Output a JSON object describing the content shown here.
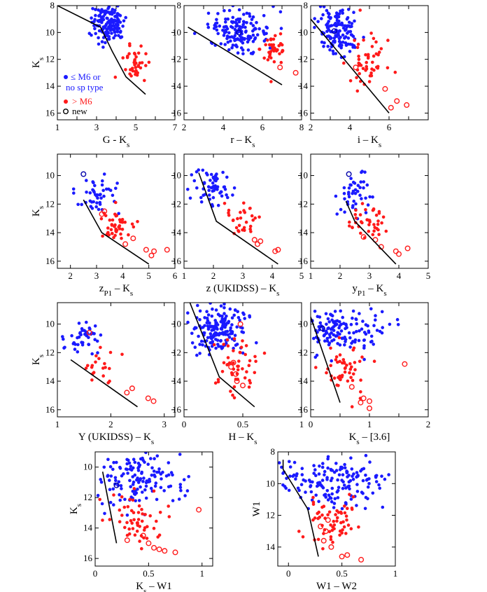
{
  "colors": {
    "blue": "#1a1aff",
    "red": "#ff1a1a",
    "navy": "#0000aa",
    "axis": "#000000"
  },
  "legend": {
    "blue_label_1": "≤ M6 or",
    "blue_label_2": "no sp type",
    "red_label": "> M6",
    "new_label": "new"
  },
  "chart_data": [
    {
      "id": "p1",
      "type": "scatter",
      "xlabel": "G - K",
      "xsub": "s",
      "ylabel": "K",
      "ysub": "s",
      "xlim": [
        1,
        7
      ],
      "ylim": [
        16.5,
        8
      ],
      "xticks": [
        1,
        2,
        3,
        4,
        5,
        6,
        7
      ],
      "xtick_labels": [
        "1",
        "",
        "3",
        "",
        "5",
        "",
        "7"
      ],
      "yticks": [
        8,
        10,
        12,
        14,
        16
      ],
      "boundary": [
        [
          1,
          8
        ],
        [
          3.2,
          9.6
        ],
        [
          3.8,
          11.4
        ],
        [
          4.5,
          13.3
        ],
        [
          5.5,
          14.6
        ]
      ],
      "blue_center": [
        3.6,
        9.3
      ],
      "blue_spread": [
        0.7,
        1.2
      ],
      "n_blue": 150,
      "red_center": [
        5.0,
        12.5
      ],
      "red_spread": [
        0.5,
        1.2
      ],
      "n_red": 40,
      "new": []
    },
    {
      "id": "p2",
      "type": "scatter",
      "xlabel": "r – K",
      "xsub": "s",
      "ylabel": "K",
      "ysub": "s",
      "xlim": [
        2,
        8
      ],
      "ylim": [
        16.5,
        8
      ],
      "xticks": [
        2,
        3,
        4,
        5,
        6,
        7,
        8
      ],
      "xtick_labels": [
        "2",
        "",
        "4",
        "",
        "6",
        "",
        "8"
      ],
      "yticks": [
        8,
        10,
        12,
        14,
        16
      ],
      "boundary": [
        [
          2.2,
          9.6
        ],
        [
          7,
          13.9
        ]
      ],
      "blue_center": [
        4.8,
        9.9
      ],
      "blue_spread": [
        1.3,
        1.2
      ],
      "n_blue": 150,
      "red_center": [
        6.6,
        11.3
      ],
      "red_spread": [
        0.6,
        1.2
      ],
      "n_red": 40,
      "new": [
        [
          4.8,
          10.0
        ],
        [
          6.9,
          12.6
        ],
        [
          7.7,
          13.0
        ]
      ]
    },
    {
      "id": "p3",
      "type": "scatter",
      "xlabel": "i – K",
      "xsub": "s",
      "ylabel": "K",
      "ysub": "s",
      "xlim": [
        2,
        8
      ],
      "ylim": [
        16.5,
        8
      ],
      "xticks": [
        2,
        3,
        4,
        5,
        6,
        7,
        8
      ],
      "xtick_labels": [
        "2",
        "",
        "4",
        "",
        "6",
        "",
        ""
      ],
      "yticks": [
        8,
        10,
        12,
        14,
        16
      ],
      "boundary": [
        [
          2,
          9
        ],
        [
          6,
          16
        ]
      ],
      "blue_center": [
        3.4,
        9.8
      ],
      "blue_spread": [
        0.9,
        1.4
      ],
      "n_blue": 140,
      "red_center": [
        4.8,
        12.2
      ],
      "red_spread": [
        0.8,
        1.6
      ],
      "n_red": 50,
      "new": [
        [
          3.2,
          9.9
        ],
        [
          4.3,
          12.6
        ],
        [
          5.8,
          14.2
        ],
        [
          6.4,
          15.1
        ],
        [
          6.9,
          15.4
        ],
        [
          6.1,
          15.6
        ]
      ]
    },
    {
      "id": "p4",
      "type": "scatter",
      "xlabel": "z",
      "xsub": "P1",
      "xlabel_tail": " – K",
      "xsub2": "s",
      "ylabel": "K",
      "ysub": "s",
      "xlim": [
        1.5,
        6
      ],
      "ylim": [
        16.5,
        8.5
      ],
      "xticks": [
        2,
        3,
        4,
        5,
        6
      ],
      "xtick_labels": [
        "2",
        "3",
        "4",
        "5",
        "6"
      ],
      "yticks": [
        10,
        12,
        14,
        16
      ],
      "boundary": [
        [
          2.5,
          11.7
        ],
        [
          3.2,
          14
        ],
        [
          5,
          16.2
        ]
      ],
      "blue_center": [
        3.0,
        11.2
      ],
      "blue_spread": [
        0.7,
        1.2
      ],
      "n_blue": 45,
      "red_center": [
        3.8,
        13.6
      ],
      "red_spread": [
        0.6,
        1.0
      ],
      "n_red": 45,
      "new": [
        [
          2.5,
          9.9
        ],
        [
          3.2,
          12.7
        ],
        [
          4.4,
          14.4
        ],
        [
          4.1,
          14.8
        ],
        [
          4.9,
          15.2
        ],
        [
          5.1,
          15.6
        ],
        [
          5.2,
          15.3
        ],
        [
          5.7,
          15.2
        ],
        [
          3.3,
          12.5
        ]
      ]
    },
    {
      "id": "p5",
      "type": "scatter",
      "xlabel": "z (UKIDSS) – K",
      "xsub": "s",
      "ylabel": "K",
      "ysub": "s",
      "xlim": [
        1,
        5
      ],
      "ylim": [
        16.5,
        8.5
      ],
      "xticks": [
        1,
        2,
        3,
        4,
        5
      ],
      "xtick_labels": [
        "1",
        "2",
        "3",
        "4",
        "5"
      ],
      "yticks": [
        10,
        12,
        14,
        16
      ],
      "boundary": [
        [
          1.5,
          9.8
        ],
        [
          2.1,
          13.2
        ],
        [
          4.2,
          16.2
        ]
      ],
      "blue_center": [
        2.0,
        10.8
      ],
      "blue_spread": [
        0.5,
        1.2
      ],
      "n_blue": 60,
      "red_center": [
        2.9,
        13.2
      ],
      "red_spread": [
        0.6,
        1.1
      ],
      "n_red": 30,
      "new": [
        [
          3.4,
          14.5
        ],
        [
          3.6,
          14.6
        ],
        [
          3.5,
          14.8
        ],
        [
          4.2,
          15.2
        ],
        [
          4.1,
          15.3
        ]
      ]
    },
    {
      "id": "p6",
      "type": "scatter",
      "xlabel": "y",
      "xsub": "P1",
      "xlabel_tail": " – K",
      "xsub2": "s",
      "ylabel": "K",
      "ysub": "s",
      "xlim": [
        1,
        5
      ],
      "ylim": [
        16.5,
        8.5
      ],
      "xticks": [
        1,
        2,
        3,
        4,
        5
      ],
      "xtick_labels": [
        "1",
        "2",
        "3",
        "4",
        "5"
      ],
      "yticks": [
        10,
        12,
        14,
        16
      ],
      "boundary": [
        [
          2.2,
          11.8
        ],
        [
          2.5,
          13.2
        ],
        [
          3.9,
          16.2
        ]
      ],
      "blue_center": [
        2.4,
        11.2
      ],
      "blue_spread": [
        0.5,
        1.3
      ],
      "n_blue": 45,
      "red_center": [
        2.9,
        13.3
      ],
      "red_spread": [
        0.5,
        1.0
      ],
      "n_red": 40,
      "new": [
        [
          2.3,
          9.9
        ],
        [
          3.2,
          14.5
        ],
        [
          3.4,
          15.0
        ],
        [
          3.9,
          15.3
        ],
        [
          4.3,
          15.1
        ],
        [
          4.0,
          15.5
        ],
        [
          2.8,
          14.3
        ]
      ]
    },
    {
      "id": "p7",
      "type": "scatter",
      "xlabel": "Y (UKIDSS) – K",
      "xsub": "s",
      "ylabel": "K",
      "ysub": "s",
      "xlim": [
        1,
        3.2
      ],
      "ylim": [
        16.5,
        8.5
      ],
      "xticks": [
        1,
        2,
        3
      ],
      "xtick_labels": [
        "1",
        "2",
        "3"
      ],
      "yticks": [
        10,
        12,
        14,
        16
      ],
      "boundary": [
        [
          1.25,
          12.5
        ],
        [
          2.5,
          15.8
        ]
      ],
      "blue_center": [
        1.5,
        10.8
      ],
      "blue_spread": [
        0.3,
        1.0
      ],
      "n_blue": 45,
      "red_center": [
        1.8,
        12.8
      ],
      "red_spread": [
        0.3,
        1.2
      ],
      "n_red": 20,
      "new": [
        [
          2.3,
          14.8
        ],
        [
          2.4,
          14.5
        ],
        [
          2.7,
          15.2
        ],
        [
          2.8,
          15.4
        ],
        [
          1.6,
          10.6
        ]
      ]
    },
    {
      "id": "p8",
      "type": "scatter",
      "xlabel": "H – K",
      "xsub": "s",
      "ylabel": "K",
      "ysub": "s",
      "xlim": [
        0,
        1
      ],
      "ylim": [
        16.5,
        8.5
      ],
      "xticks": [
        0,
        0.5,
        1
      ],
      "xtick_labels": [
        "0",
        "0.5",
        "1"
      ],
      "yticks": [
        10,
        12,
        14,
        16
      ],
      "boundary": [
        [
          0.05,
          8.5
        ],
        [
          0.3,
          13.7
        ],
        [
          0.6,
          15.8
        ]
      ],
      "blue_center": [
        0.3,
        10.3
      ],
      "blue_spread": [
        0.2,
        1.4
      ],
      "n_blue": 180,
      "red_center": [
        0.45,
        13.0
      ],
      "red_spread": [
        0.15,
        1.5
      ],
      "n_red": 50,
      "new": [
        [
          0.48,
          10.0
        ],
        [
          0.42,
          12.7
        ],
        [
          0.44,
          13.5
        ],
        [
          0.45,
          14.0
        ],
        [
          0.5,
          14.3
        ],
        [
          0.4,
          13.0
        ]
      ]
    },
    {
      "id": "p9",
      "type": "scatter",
      "xlabel": "K",
      "xsub": "s",
      "xlabel_tail": " – [3.6]",
      "ylabel": "K",
      "ysub": "s",
      "xlim": [
        0,
        2
      ],
      "ylim": [
        16.5,
        8.5
      ],
      "xticks": [
        0,
        0.5,
        1,
        1.5,
        2
      ],
      "xtick_labels": [
        "0",
        "",
        "1",
        "",
        "2"
      ],
      "yticks": [
        10,
        12,
        14,
        16
      ],
      "boundary": [
        [
          0,
          9.5
        ],
        [
          0.5,
          15.5
        ]
      ],
      "blue_center": [
        0.5,
        10.3
      ],
      "blue_spread": [
        0.6,
        1.4
      ],
      "n_blue": 150,
      "red_center": [
        0.55,
        13.0
      ],
      "red_spread": [
        0.3,
        1.6
      ],
      "n_red": 50,
      "new": [
        [
          0.2,
          10.3
        ],
        [
          1.6,
          12.8
        ],
        [
          0.7,
          14.4
        ],
        [
          0.9,
          15.2
        ],
        [
          0.85,
          15.5
        ],
        [
          1.0,
          15.9
        ],
        [
          1.0,
          15.4
        ]
      ]
    },
    {
      "id": "p10",
      "type": "scatter",
      "xlabel": "K",
      "xsub": "s",
      "xlabel_tail": " – W1",
      "ylabel": "K",
      "ysub": "s",
      "xlim": [
        0,
        1.1
      ],
      "ylim": [
        16.5,
        9
      ],
      "xticks": [
        0,
        0.5,
        1
      ],
      "xtick_labels": [
        "0",
        "0.5",
        "1"
      ],
      "yticks": [
        10,
        12,
        14,
        16
      ],
      "boundary": [
        [
          0.07,
          10.3
        ],
        [
          0.2,
          15
        ]
      ],
      "blue_center": [
        0.4,
        10.8
      ],
      "blue_spread": [
        0.35,
        1.5
      ],
      "n_blue": 140,
      "red_center": [
        0.35,
        13.5
      ],
      "red_spread": [
        0.2,
        1.5
      ],
      "n_red": 55,
      "new": [
        [
          0.97,
          12.8
        ],
        [
          0.3,
          14.8
        ],
        [
          0.45,
          14.5
        ],
        [
          0.5,
          15.0
        ],
        [
          0.55,
          15.3
        ],
        [
          0.6,
          15.4
        ],
        [
          0.65,
          15.5
        ],
        [
          0.75,
          15.6
        ],
        [
          0.2,
          11.2
        ]
      ]
    },
    {
      "id": "p11",
      "type": "scatter",
      "xlabel": "W1 – W2",
      "xsub": "",
      "ylabel": "W1",
      "ysub": "",
      "xlim": [
        -0.1,
        1.0
      ],
      "ylim": [
        15.2,
        8
      ],
      "xticks": [
        0,
        0.5,
        1
      ],
      "xtick_labels": [
        "0",
        "0.5",
        "1"
      ],
      "yticks": [
        8,
        10,
        12,
        14
      ],
      "boundary": [
        [
          -0.05,
          8.5
        ],
        [
          -0.05,
          9.1
        ],
        [
          0.18,
          11.6
        ],
        [
          0.28,
          14.6
        ]
      ],
      "blue_center": [
        0.4,
        9.8
      ],
      "blue_spread": [
        0.4,
        1.4
      ],
      "n_blue": 170,
      "red_center": [
        0.4,
        12.5
      ],
      "red_spread": [
        0.25,
        1.6
      ],
      "n_red": 60,
      "new": [
        [
          0.3,
          12.7
        ],
        [
          0.35,
          13.0
        ],
        [
          0.33,
          13.6
        ],
        [
          0.4,
          14.0
        ],
        [
          0.5,
          14.6
        ],
        [
          0.55,
          14.5
        ],
        [
          0.68,
          14.8
        ],
        [
          0.37,
          12.3
        ]
      ]
    }
  ]
}
